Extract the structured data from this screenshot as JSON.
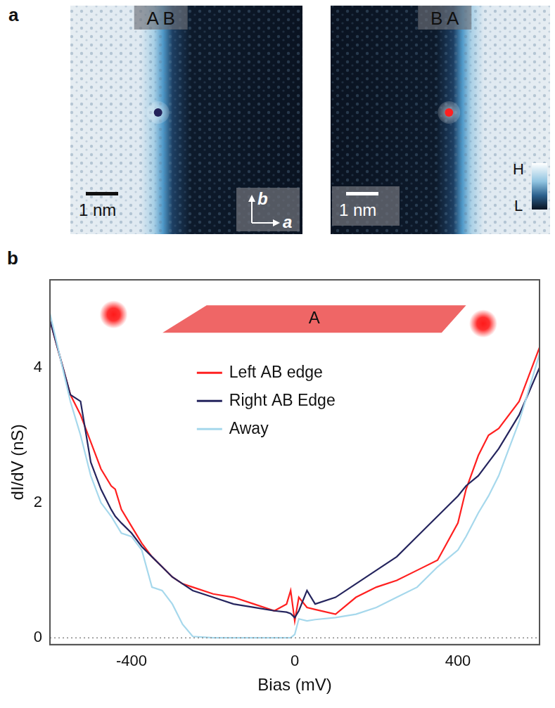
{
  "panel_a": {
    "label": "a",
    "images": [
      {
        "domain_labels": [
          "A",
          "B"
        ],
        "scale_bar": "1 nm",
        "axis_labels": [
          "b",
          "a"
        ],
        "color": "#23235a"
      },
      {
        "domain_labels": [
          "B",
          "A"
        ],
        "scale_bar": "1 nm",
        "color": "#ff2020"
      }
    ],
    "colorbar": [
      "H",
      "L"
    ]
  },
  "chart_data": {
    "type": "line",
    "panel_label": "b",
    "x_label": "Bias (mV)",
    "y_label": "dI/dV (nS)",
    "annotation": "A",
    "x": [
      -600,
      -550,
      -525,
      -500,
      -475,
      -450,
      -440,
      -425,
      -400,
      -375,
      -350,
      -325,
      -300,
      -275,
      -250,
      -200,
      -150,
      -100,
      -50,
      -20,
      -10,
      0,
      10,
      30,
      50,
      100,
      150,
      200,
      250,
      300,
      350,
      400,
      420,
      450,
      475,
      500,
      550,
      600
    ],
    "series": [
      {
        "name": "Left AB edge",
        "color": "#ff2020",
        "values": [
          4.7,
          3.6,
          3.3,
          2.9,
          2.5,
          2.25,
          2.2,
          1.9,
          1.65,
          1.4,
          1.2,
          1.05,
          0.9,
          0.8,
          0.75,
          0.65,
          0.6,
          0.5,
          0.4,
          0.5,
          0.7,
          0.25,
          0.6,
          0.45,
          0.42,
          0.35,
          0.6,
          0.75,
          0.85,
          1.0,
          1.15,
          1.7,
          2.2,
          2.7,
          3.0,
          3.1,
          3.5,
          4.3
        ]
      },
      {
        "name": "Right AB Edge",
        "color": "#25255e",
        "values": [
          4.7,
          3.6,
          3.5,
          2.6,
          2.2,
          1.9,
          1.8,
          1.7,
          1.55,
          1.35,
          1.2,
          1.05,
          0.9,
          0.8,
          0.7,
          0.6,
          0.5,
          0.45,
          0.4,
          0.38,
          0.36,
          0.3,
          0.4,
          0.7,
          0.5,
          0.6,
          0.8,
          1.0,
          1.2,
          1.5,
          1.8,
          2.1,
          2.25,
          2.4,
          2.6,
          2.8,
          3.3,
          4.0
        ]
      },
      {
        "name": "Away",
        "color": "#a6d8ec",
        "values": [
          4.8,
          3.5,
          3.0,
          2.4,
          2.0,
          1.8,
          1.7,
          1.55,
          1.5,
          1.3,
          0.75,
          0.7,
          0.5,
          0.2,
          0.02,
          0,
          0,
          0,
          0,
          0,
          0,
          0.05,
          0.28,
          0.25,
          0.27,
          0.3,
          0.35,
          0.45,
          0.6,
          0.75,
          1.05,
          1.3,
          1.5,
          1.85,
          2.1,
          2.4,
          3.2,
          4.2
        ]
      }
    ],
    "xlim": [
      -600,
      600
    ],
    "xticks": [
      -400,
      0,
      400
    ],
    "ylim": [
      -0.1,
      5.3
    ],
    "yticks": [
      0,
      2,
      4
    ],
    "reference_line": 0,
    "legend": "upper center",
    "grid": false
  }
}
